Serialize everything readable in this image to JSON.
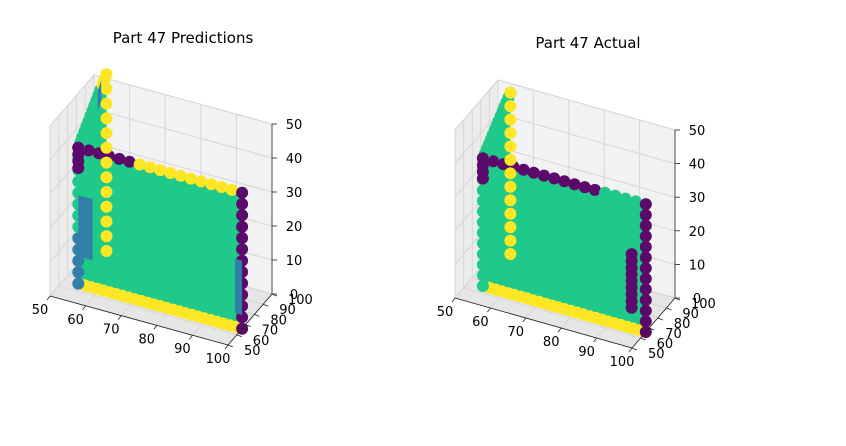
{
  "colors": {
    "green": "#1fc98a",
    "yellow": "#fde725",
    "purple": "#5b0a6b",
    "blue": "#2f7fa8"
  },
  "chart_data": [
    {
      "type": "scatter",
      "title": "Part 47 Predictions",
      "x_ticks": [
        "50",
        "60",
        "70",
        "80",
        "90",
        "100"
      ],
      "y_ticks": [
        "50",
        "60",
        "70",
        "80",
        "90",
        "100"
      ],
      "z_ticks": [
        "0",
        "10",
        "20",
        "30",
        "40",
        "50"
      ],
      "xlim": [
        50,
        100
      ],
      "ylim": [
        50,
        100
      ],
      "zlim": [
        0,
        50
      ],
      "grid": true,
      "projection": "3d",
      "series": [
        {
          "color": "green",
          "points": "two perpendicular walls"
        },
        {
          "color": "yellow",
          "points": "wall edges"
        },
        {
          "color": "purple",
          "points": "wall corners and vertical edges"
        },
        {
          "color": "blue",
          "points": "patches on wall edges"
        }
      ]
    },
    {
      "type": "scatter",
      "title": "Part 47 Actual",
      "x_ticks": [
        "50",
        "60",
        "70",
        "80",
        "90",
        "100"
      ],
      "y_ticks": [
        "50",
        "60",
        "70",
        "80",
        "90",
        "100"
      ],
      "z_ticks": [
        "0",
        "10",
        "20",
        "30",
        "40",
        "50"
      ],
      "xlim": [
        50,
        100
      ],
      "ylim": [
        50,
        100
      ],
      "zlim": [
        0,
        50
      ],
      "grid": true,
      "projection": "3d",
      "series": [
        {
          "color": "green",
          "points": "two perpendicular walls"
        },
        {
          "color": "yellow",
          "points": "wall edges"
        },
        {
          "color": "purple",
          "points": "wall corners and vertical edges"
        }
      ]
    }
  ]
}
